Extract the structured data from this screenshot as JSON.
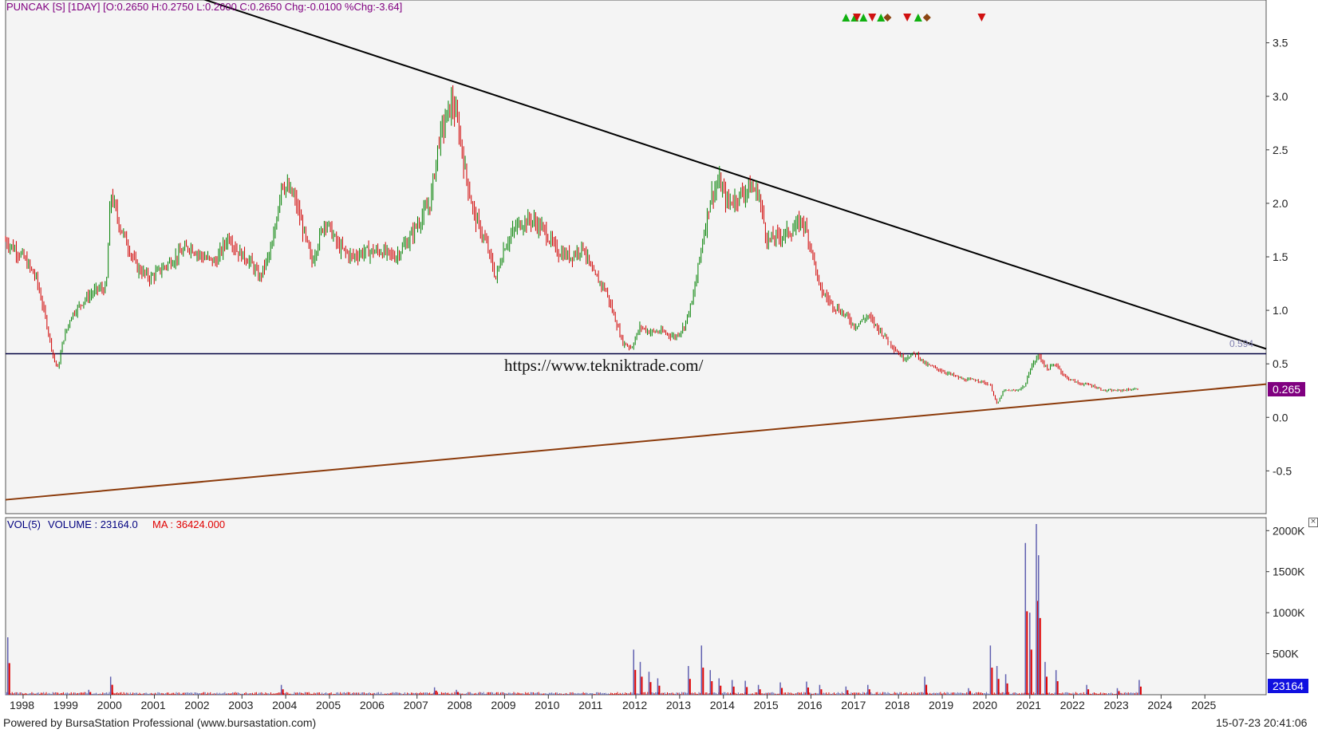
{
  "header": {
    "ticker_info": "PUNCAK [S] [1DAY] [O:0.2650 H:0.2750 L:0.2600 C:0.2650 Chg:-0.0100 %Chg:-3.64]",
    "volume_label": "VOL(5)",
    "volume_value": "VOLUME : 23164.0",
    "ma_value": "MA : 36424.000"
  },
  "watermark": "https://www.tekniktrade.com/",
  "footer": {
    "powered_by": "Powered by BursaStation Professional (www.bursastation.com)",
    "timestamp": "15-07-23 20:41:06"
  },
  "badges": {
    "last_price": "0.265",
    "last_volume": "23164",
    "resistance_value": "0.594"
  },
  "colors": {
    "background": "#f4f4f4",
    "up_candle": "#008000",
    "down_candle": "#d00000",
    "trendline_down": "#000000",
    "trendline_up": "#8b3a0a",
    "support_line": "#000040",
    "price_badge": "#800080",
    "volume_badge": "#1010e0",
    "volume_blue": "#6060b0",
    "volume_red": "#e00000"
  },
  "chart_data": [
    {
      "type": "candlestick",
      "name": "price",
      "x_ticks": [
        "1998",
        "1999",
        "2000",
        "2001",
        "2002",
        "2003",
        "2004",
        "2005",
        "2006",
        "2007",
        "2008",
        "2009",
        "2010",
        "2011",
        "2012",
        "2013",
        "2014",
        "2015",
        "2016",
        "2017",
        "2018",
        "2019",
        "2020",
        "2021",
        "2022",
        "2023",
        "2024",
        "2025"
      ],
      "y_ticks": [
        "3.5",
        "3.0",
        "2.5",
        "2.0",
        "1.5",
        "1.0",
        "0.5",
        "0.0",
        "-0.5"
      ],
      "ylim": [
        -0.9,
        3.9
      ],
      "xlim": [
        1997.6,
        2026.4
      ],
      "series_points": [
        [
          1997.6,
          1.65
        ],
        [
          1998.0,
          1.5
        ],
        [
          1998.3,
          1.3
        ],
        [
          1998.5,
          0.95
        ],
        [
          1998.7,
          0.55
        ],
        [
          1998.8,
          0.45
        ],
        [
          1998.9,
          0.7
        ],
        [
          1999.1,
          0.95
        ],
        [
          1999.4,
          1.1
        ],
        [
          1999.7,
          1.2
        ],
        [
          1999.9,
          1.2
        ],
        [
          2000.0,
          2.1
        ],
        [
          2000.2,
          1.8
        ],
        [
          2000.6,
          1.4
        ],
        [
          2000.9,
          1.3
        ],
        [
          2001.2,
          1.4
        ],
        [
          2001.5,
          1.5
        ],
        [
          2001.8,
          1.6
        ],
        [
          2002.1,
          1.5
        ],
        [
          2002.4,
          1.45
        ],
        [
          2002.7,
          1.7
        ],
        [
          2002.9,
          1.55
        ],
        [
          2003.2,
          1.45
        ],
        [
          2003.4,
          1.3
        ],
        [
          2003.7,
          1.6
        ],
        [
          2003.9,
          2.2
        ],
        [
          2004.2,
          2.05
        ],
        [
          2004.4,
          1.75
        ],
        [
          2004.6,
          1.45
        ],
        [
          2004.9,
          1.85
        ],
        [
          2005.2,
          1.6
        ],
        [
          2005.5,
          1.5
        ],
        [
          2005.8,
          1.55
        ],
        [
          2006.2,
          1.55
        ],
        [
          2006.5,
          1.5
        ],
        [
          2006.8,
          1.65
        ],
        [
          2007.0,
          1.8
        ],
        [
          2007.3,
          2.0
        ],
        [
          2007.5,
          2.6
        ],
        [
          2007.8,
          2.95
        ],
        [
          2007.95,
          2.7
        ],
        [
          2008.1,
          2.3
        ],
        [
          2008.3,
          1.9
        ],
        [
          2008.6,
          1.6
        ],
        [
          2008.8,
          1.3
        ],
        [
          2009.0,
          1.6
        ],
        [
          2009.3,
          1.8
        ],
        [
          2009.6,
          1.85
        ],
        [
          2009.9,
          1.75
        ],
        [
          2010.2,
          1.55
        ],
        [
          2010.5,
          1.5
        ],
        [
          2010.8,
          1.6
        ],
        [
          2011.0,
          1.35
        ],
        [
          2011.3,
          1.2
        ],
        [
          2011.5,
          0.95
        ],
        [
          2011.7,
          0.7
        ],
        [
          2011.9,
          0.65
        ],
        [
          2012.1,
          0.85
        ],
        [
          2012.3,
          0.8
        ],
        [
          2012.6,
          0.8
        ],
        [
          2012.9,
          0.75
        ],
        [
          2013.1,
          0.85
        ],
        [
          2013.3,
          1.1
        ],
        [
          2013.5,
          1.6
        ],
        [
          2013.7,
          2.05
        ],
        [
          2013.9,
          2.2
        ],
        [
          2014.1,
          2.0
        ],
        [
          2014.3,
          2.05
        ],
        [
          2014.6,
          2.15
        ],
        [
          2014.8,
          2.1
        ],
        [
          2015.0,
          1.65
        ],
        [
          2015.3,
          1.7
        ],
        [
          2015.6,
          1.75
        ],
        [
          2015.8,
          1.85
        ],
        [
          2016.0,
          1.6
        ],
        [
          2016.2,
          1.2
        ],
        [
          2016.5,
          1.05
        ],
        [
          2016.8,
          0.95
        ],
        [
          2017.0,
          0.85
        ],
        [
          2017.3,
          0.95
        ],
        [
          2017.6,
          0.8
        ],
        [
          2017.9,
          0.65
        ],
        [
          2018.1,
          0.55
        ],
        [
          2018.4,
          0.6
        ],
        [
          2018.6,
          0.5
        ],
        [
          2018.9,
          0.45
        ],
        [
          2019.2,
          0.4
        ],
        [
          2019.5,
          0.35
        ],
        [
          2019.8,
          0.35
        ],
        [
          2020.1,
          0.3
        ],
        [
          2020.25,
          0.12
        ],
        [
          2020.4,
          0.25
        ],
        [
          2020.7,
          0.25
        ],
        [
          2020.9,
          0.3
        ],
        [
          2021.0,
          0.45
        ],
        [
          2021.2,
          0.58
        ],
        [
          2021.4,
          0.45
        ],
        [
          2021.6,
          0.5
        ],
        [
          2021.8,
          0.38
        ],
        [
          2022.1,
          0.32
        ],
        [
          2022.4,
          0.3
        ],
        [
          2022.7,
          0.25
        ],
        [
          2023.0,
          0.25
        ],
        [
          2023.3,
          0.26
        ],
        [
          2023.5,
          0.265
        ]
      ],
      "horizontal_support": 0.594,
      "trendline_down": {
        "from": [
          2001.8,
          3.95
        ],
        "to": [
          2026.4,
          0.64
        ]
      },
      "trendline_up": {
        "from": [
          1997.6,
          -0.77
        ],
        "to": [
          2026.4,
          0.31
        ]
      },
      "signals": [
        {
          "x": 2016.8,
          "type": "buy"
        },
        {
          "x": 2017.0,
          "type": "buy"
        },
        {
          "x": 2017.05,
          "type": "sell"
        },
        {
          "x": 2017.2,
          "type": "buy"
        },
        {
          "x": 2017.4,
          "type": "sell"
        },
        {
          "x": 2017.6,
          "type": "buy"
        },
        {
          "x": 2017.75,
          "type": "neutral"
        },
        {
          "x": 2018.2,
          "type": "sell"
        },
        {
          "x": 2018.45,
          "type": "buy"
        },
        {
          "x": 2018.65,
          "type": "neutral"
        },
        {
          "x": 2019.9,
          "type": "sell"
        }
      ],
      "last_close": 0.265
    },
    {
      "type": "bar",
      "name": "volume",
      "y_ticks": [
        "2000K",
        "1500K",
        "1000K",
        "500K"
      ],
      "ylim": [
        0,
        2100000
      ],
      "spikes": [
        [
          1997.65,
          700000
        ],
        [
          1999.5,
          60000
        ],
        [
          2000.0,
          220000
        ],
        [
          2003.9,
          120000
        ],
        [
          2007.4,
          90000
        ],
        [
          2007.9,
          60000
        ],
        [
          2011.95,
          550000
        ],
        [
          2012.1,
          400000
        ],
        [
          2012.3,
          280000
        ],
        [
          2012.5,
          200000
        ],
        [
          2013.2,
          350000
        ],
        [
          2013.5,
          600000
        ],
        [
          2013.7,
          300000
        ],
        [
          2013.9,
          200000
        ],
        [
          2014.2,
          180000
        ],
        [
          2014.5,
          170000
        ],
        [
          2014.8,
          120000
        ],
        [
          2015.3,
          150000
        ],
        [
          2015.9,
          160000
        ],
        [
          2016.2,
          120000
        ],
        [
          2016.8,
          100000
        ],
        [
          2017.3,
          120000
        ],
        [
          2018.6,
          220000
        ],
        [
          2019.6,
          80000
        ],
        [
          2020.1,
          600000
        ],
        [
          2020.25,
          350000
        ],
        [
          2020.45,
          250000
        ],
        [
          2020.9,
          1850000
        ],
        [
          2021.0,
          1000000
        ],
        [
          2021.15,
          2080000
        ],
        [
          2021.2,
          1700000
        ],
        [
          2021.35,
          400000
        ],
        [
          2021.6,
          300000
        ],
        [
          2022.3,
          120000
        ],
        [
          2023.0,
          80000
        ],
        [
          2023.5,
          180000
        ]
      ],
      "last_volume": 23164,
      "ma": 36424.0
    }
  ]
}
